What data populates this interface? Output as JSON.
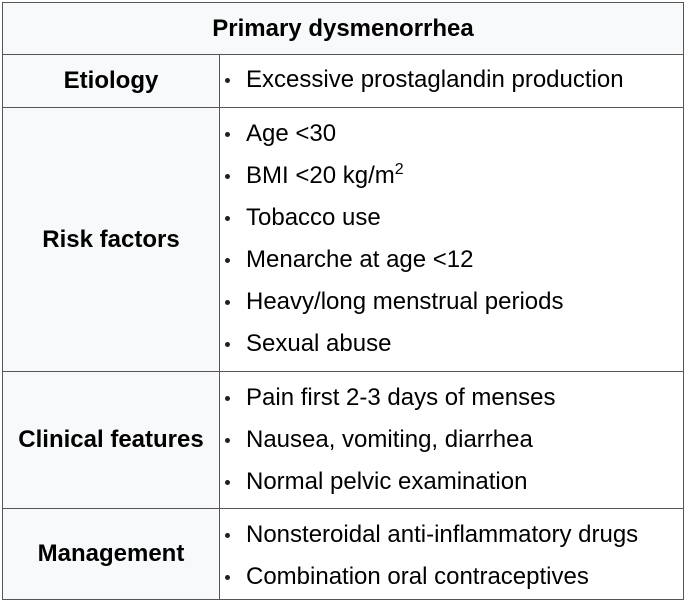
{
  "title": "Primary dysmenorrhea",
  "rows": [
    {
      "label": "Etiology",
      "items": [
        "Excessive prostaglandin production"
      ]
    },
    {
      "label": "Risk factors",
      "items": [
        "Age <30",
        "BMI <20 kg/m",
        "Tobacco use",
        "Menarche at age <12",
        "Heavy/long menstrual periods",
        "Sexual abuse"
      ],
      "bmi_superscript": "2"
    },
    {
      "label": "Clinical features",
      "items": [
        "Pain first 2-3 days of menses",
        "Nausea, vomiting, diarrhea",
        "Normal pelvic examination"
      ]
    },
    {
      "label": "Management",
      "items": [
        "Nonsteroidal anti-inflammatory drugs",
        "Combination oral contraceptives"
      ]
    }
  ]
}
